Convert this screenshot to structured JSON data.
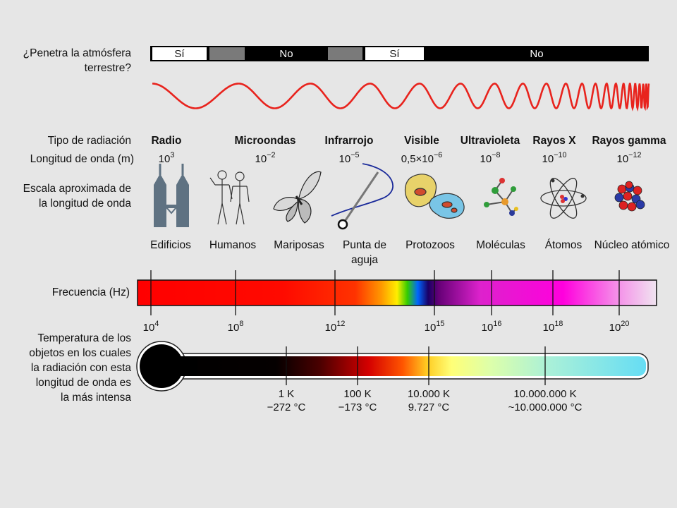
{
  "row_labels": {
    "atmosphere_line1": "¿Penetra la atmósfera",
    "atmosphere_line2": "terrestre?",
    "radiation_type": "Tipo de radiación",
    "wavelength": "Longitud de onda (m)",
    "scale_line1": "Escala aproximada de",
    "scale_line2": "la longitud de onda",
    "frequency": "Frecuencia (Hz)",
    "temperature_lines": [
      "Temperatura de los",
      "objetos en los cuales",
      "la radiación con esta",
      "longitud de onda es",
      "la más intensa"
    ]
  },
  "atmosphere_bar": [
    {
      "text": "Sí",
      "style": "white"
    },
    {
      "text": "",
      "style": "gray"
    },
    {
      "text": "No",
      "style": "black"
    },
    {
      "text": "",
      "style": "gray"
    },
    {
      "text": "Sí",
      "style": "white"
    },
    {
      "text": "No",
      "style": "black"
    }
  ],
  "radiation_types": [
    {
      "name": "Radio",
      "wl_base": "10",
      "wl_exp": "3"
    },
    {
      "name": "Microondas",
      "wl_base": "10",
      "wl_exp": "−2"
    },
    {
      "name": "Infrarrojo",
      "wl_base": "10",
      "wl_exp": "−5"
    },
    {
      "name": "Visible",
      "wl_base": "0,5×10",
      "wl_exp": "−6"
    },
    {
      "name": "Ultravioleta",
      "wl_base": "10",
      "wl_exp": "−8"
    },
    {
      "name": "Rayos X",
      "wl_base": "10",
      "wl_exp": "−10"
    },
    {
      "name": "Rayos gamma",
      "wl_base": "10",
      "wl_exp": "−12"
    }
  ],
  "scale_objects": [
    {
      "label": "Edificios",
      "icon": "buildings-icon"
    },
    {
      "label": "Humanos",
      "icon": "humans-icon"
    },
    {
      "label": "Mariposas",
      "icon": "butterfly-icon"
    },
    {
      "label": "Punta de",
      "label2": "aguja",
      "icon": "needle-icon"
    },
    {
      "label": "Protozoos",
      "icon": "protozoa-icon"
    },
    {
      "label": "Moléculas",
      "icon": "molecule-icon"
    },
    {
      "label": "Átomos",
      "icon": "atom-icon"
    },
    {
      "label": "Núcleo atómico",
      "icon": "nucleus-icon"
    }
  ],
  "frequency_ticks": [
    {
      "base": "10",
      "exp": "4"
    },
    {
      "base": "10",
      "exp": "8"
    },
    {
      "base": "10",
      "exp": "12"
    },
    {
      "base": "10",
      "exp": "15"
    },
    {
      "base": "10",
      "exp": "16"
    },
    {
      "base": "10",
      "exp": "18"
    },
    {
      "base": "10",
      "exp": "20"
    }
  ],
  "temperature_ticks": [
    {
      "kelvin": "1 K",
      "celsius": "−272 °C"
    },
    {
      "kelvin": "100 K",
      "celsius": "−173 °C"
    },
    {
      "kelvin": "10.000 K",
      "celsius": "9.727 °C"
    },
    {
      "kelvin": "10.000.000 K",
      "celsius": "~10.000.000 °C"
    }
  ],
  "colors": {
    "background": "#e6e6e6",
    "wave": "#e8231d",
    "bar_gray": "#7a7a7a"
  }
}
